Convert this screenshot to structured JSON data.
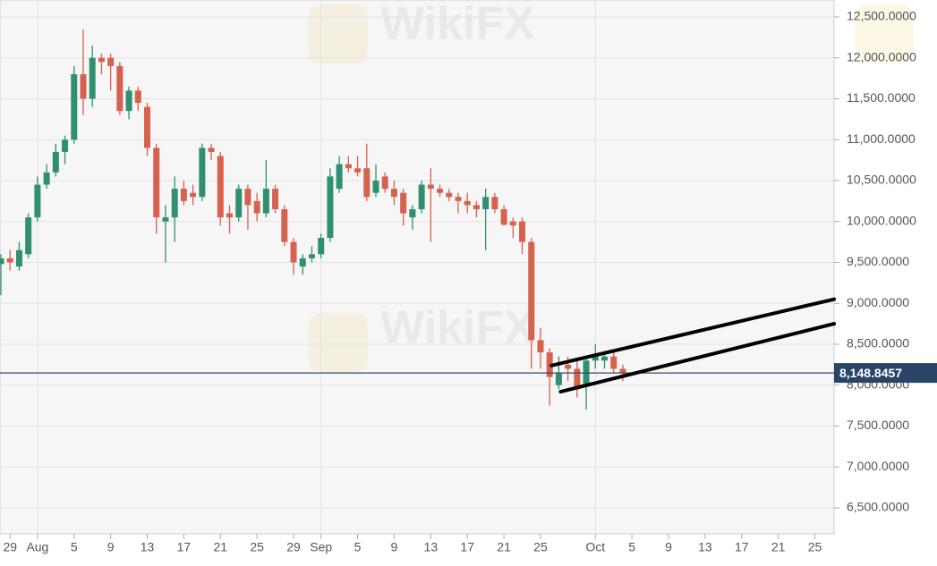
{
  "chart_data": {
    "type": "candlestick",
    "watermark": "WikiFX",
    "up_color": "#2f8f6e",
    "down_color": "#d5614f",
    "x": [
      -3,
      -2,
      -1,
      0,
      1,
      2,
      3,
      4,
      5,
      6,
      7,
      8,
      9,
      10,
      11,
      12,
      13,
      14,
      15,
      16,
      17,
      18,
      19,
      20,
      21,
      22,
      23,
      24,
      25,
      26,
      27,
      28,
      29,
      30,
      31,
      32,
      33,
      34,
      35,
      36,
      37,
      38,
      39,
      40,
      41,
      42,
      43,
      44,
      45,
      46,
      47,
      48,
      49,
      50,
      51,
      52,
      53,
      54,
      55,
      56,
      57,
      58,
      59,
      60,
      61,
      62,
      63,
      64,
      65
    ],
    "open": [
      9480,
      9550,
      9450,
      9600,
      10050,
      10450,
      10600,
      10850,
      11000,
      11800,
      11500,
      12000,
      12000,
      11900,
      11350,
      11600,
      11400,
      10900,
      10000,
      10050,
      10400,
      10350,
      10300,
      10900,
      10800,
      10100,
      10050,
      10400,
      10250,
      10100,
      10400,
      10150,
      9750,
      9450,
      9550,
      9600,
      9800,
      10400,
      10700,
      10650,
      10650,
      10350,
      10550,
      10400,
      10350,
      10050,
      10150,
      10450,
      10400,
      10350,
      10300,
      10250,
      10200,
      10150,
      10300,
      10150,
      10000,
      10000,
      9750,
      8550,
      8400,
      8000,
      8250,
      8200,
      8000,
      8300,
      8300,
      8350,
      8200
    ],
    "high": [
      9600,
      9650,
      9750,
      10100,
      10550,
      10700,
      10950,
      11050,
      11900,
      12350,
      12150,
      12050,
      12050,
      11950,
      11650,
      11650,
      11450,
      10950,
      10200,
      10550,
      10500,
      10450,
      10950,
      10950,
      10850,
      10200,
      10450,
      10450,
      10350,
      10750,
      10450,
      10200,
      9800,
      9600,
      9700,
      9850,
      10650,
      10800,
      10800,
      10800,
      10950,
      10700,
      10600,
      10500,
      10400,
      10200,
      10500,
      10650,
      10450,
      10400,
      10350,
      10350,
      10250,
      10400,
      10350,
      10200,
      10050,
      10050,
      9800,
      8700,
      8450,
      8350,
      8350,
      8300,
      8350,
      8500,
      8400,
      8400,
      8250
    ],
    "low": [
      9100,
      9400,
      9400,
      9550,
      10000,
      10400,
      10550,
      10700,
      10950,
      11300,
      11400,
      11800,
      11600,
      11300,
      11250,
      11350,
      10800,
      9850,
      9500,
      9750,
      10200,
      10200,
      10250,
      10750,
      9950,
      9850,
      10000,
      9900,
      10000,
      10050,
      10100,
      9700,
      9350,
      9350,
      9500,
      9550,
      9750,
      10350,
      10600,
      10550,
      10250,
      10300,
      10350,
      10200,
      9950,
      9900,
      10100,
      9750,
      10300,
      10250,
      10100,
      10100,
      10050,
      9650,
      10100,
      9950,
      9800,
      9600,
      8200,
      8200,
      7750,
      7950,
      8050,
      7850,
      7700,
      8200,
      8200,
      8150,
      8050
    ],
    "close": [
      9550,
      9500,
      9650,
      10050,
      10450,
      10600,
      10850,
      11000,
      11800,
      11500,
      12000,
      11950,
      11900,
      11350,
      11600,
      11450,
      10900,
      10050,
      10050,
      10400,
      10250,
      10300,
      10900,
      10850,
      10050,
      10050,
      10400,
      10200,
      10100,
      10400,
      10150,
      9750,
      9500,
      9550,
      9600,
      9800,
      10550,
      10700,
      10650,
      10600,
      10300,
      10500,
      10400,
      10300,
      10100,
      10150,
      10450,
      10400,
      10350,
      10300,
      10250,
      10200,
      10150,
      10300,
      10150,
      9960,
      9950,
      9750,
      8550,
      8400,
      8100,
      8150,
      8200,
      7950,
      8300,
      8350,
      8350,
      8200,
      8150
    ],
    "xlim": [
      -3.1,
      88.1
    ],
    "xticks": [
      {
        "value": -2,
        "label": "29"
      },
      {
        "value": 1,
        "label": "Aug"
      },
      {
        "value": 5,
        "label": "5"
      },
      {
        "value": 9,
        "label": "9"
      },
      {
        "value": 13,
        "label": "13"
      },
      {
        "value": 17,
        "label": "17"
      },
      {
        "value": 21,
        "label": "21"
      },
      {
        "value": 25,
        "label": "25"
      },
      {
        "value": 29,
        "label": "29"
      },
      {
        "value": 32,
        "label": "Sep"
      },
      {
        "value": 36,
        "label": "5"
      },
      {
        "value": 40,
        "label": "9"
      },
      {
        "value": 44,
        "label": "13"
      },
      {
        "value": 48,
        "label": "17"
      },
      {
        "value": 52,
        "label": "21"
      },
      {
        "value": 56,
        "label": "25"
      },
      {
        "value": 62,
        "label": "Oct"
      },
      {
        "value": 66,
        "label": "5"
      },
      {
        "value": 70,
        "label": "9"
      },
      {
        "value": 74,
        "label": "13"
      },
      {
        "value": 78,
        "label": "17"
      },
      {
        "value": 82,
        "label": "21"
      },
      {
        "value": 86,
        "label": "25"
      }
    ],
    "ylim": [
      6183,
      12707
    ],
    "yticks": [
      {
        "value": 12500,
        "label": "12,500.0000"
      },
      {
        "value": 12000,
        "label": "12,000.0000"
      },
      {
        "value": 11500,
        "label": "11,500.0000"
      },
      {
        "value": 11000,
        "label": "11,000.0000"
      },
      {
        "value": 10500,
        "label": "10,500.0000"
      },
      {
        "value": 10000,
        "label": "10,000.0000"
      },
      {
        "value": 9500,
        "label": "9,500.0000"
      },
      {
        "value": 9000,
        "label": "9,000.0000"
      },
      {
        "value": 8500,
        "label": "8,500.0000"
      },
      {
        "value": 8000,
        "label": "8,000.0000"
      },
      {
        "value": 7500,
        "label": "7,500.0000"
      },
      {
        "value": 7000,
        "label": "7,000.0000"
      },
      {
        "value": 6500,
        "label": "6,500.0000"
      }
    ],
    "last_price": {
      "value": 8148.8457,
      "label": "8,148.8457"
    },
    "trendlines": [
      {
        "start": [
          57.2,
          8240
        ],
        "end": [
          88.1,
          9050
        ]
      },
      {
        "start": [
          58.2,
          7920
        ],
        "end": [
          88.1,
          8750
        ]
      }
    ],
    "grid": true
  }
}
